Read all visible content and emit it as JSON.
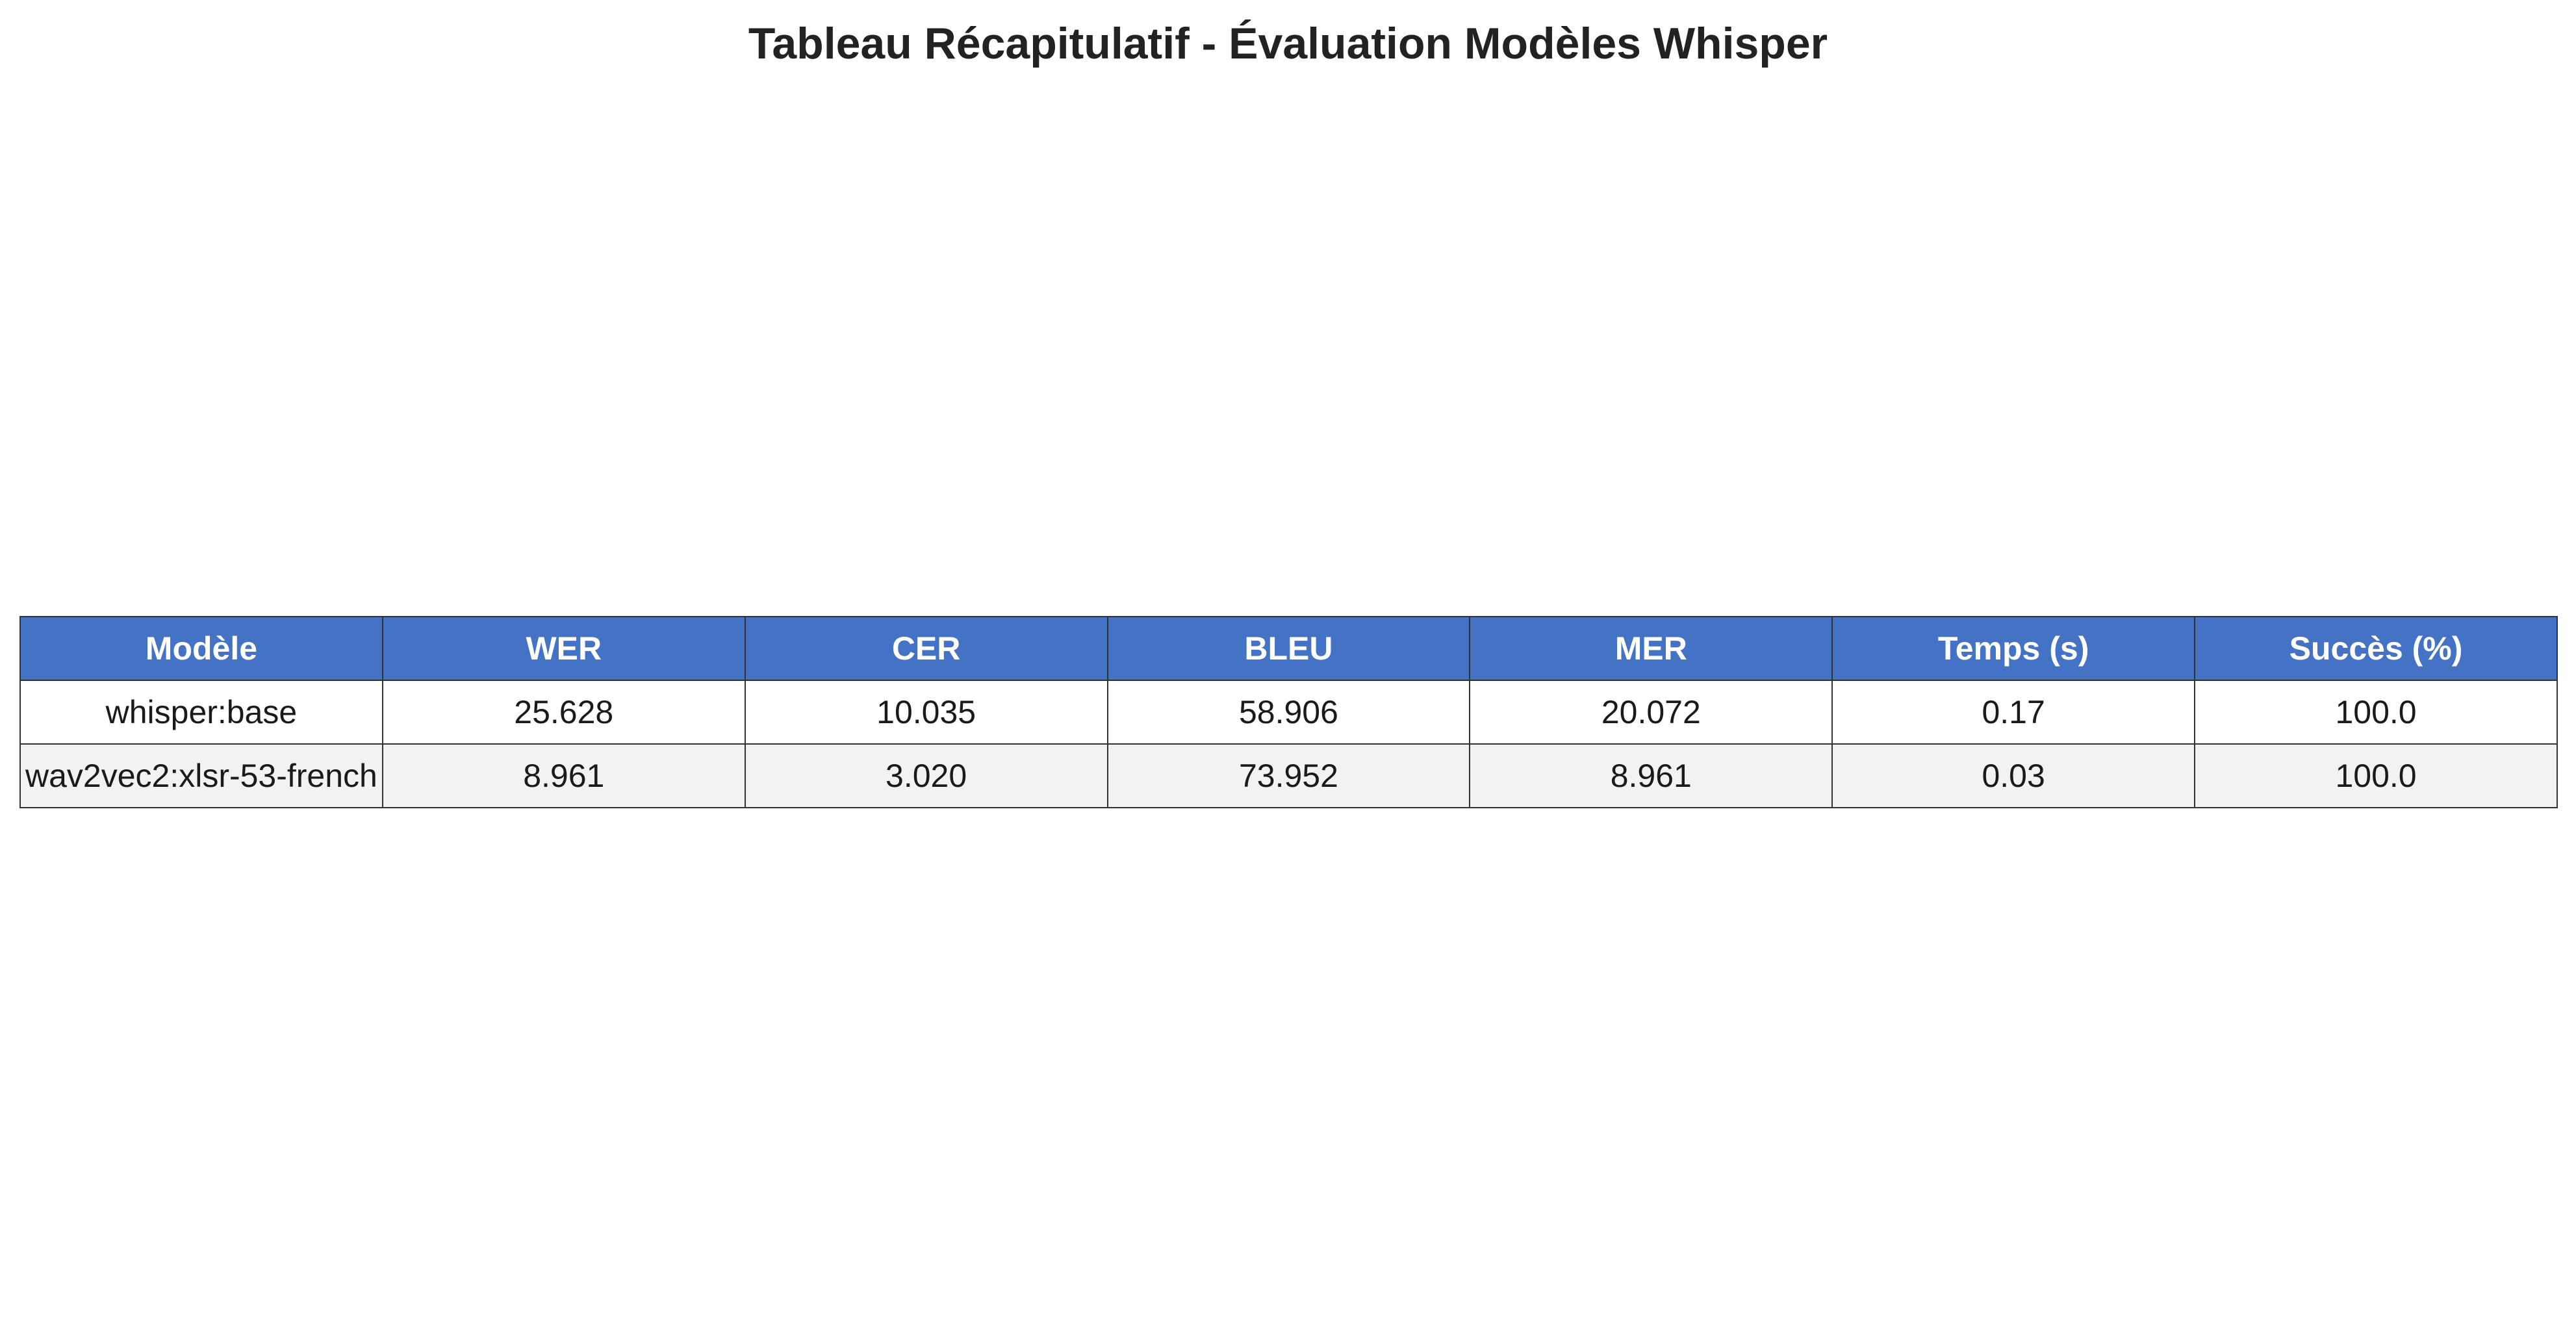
{
  "chart_data": {
    "type": "table",
    "title": "Tableau Récapitulatif - Évaluation Modèles Whisper",
    "columns": [
      "Modèle",
      "WER",
      "CER",
      "BLEU",
      "MER",
      "Temps (s)",
      "Succès (%)"
    ],
    "rows": [
      [
        "whisper:base",
        "25.628",
        "10.035",
        "58.906",
        "20.072",
        "0.17",
        "100.0"
      ],
      [
        "wav2vec2:xlsr-53-french",
        "8.961",
        "3.020",
        "73.952",
        "8.961",
        "0.03",
        "100.0"
      ]
    ],
    "colors": {
      "header_bg": "#4472c4",
      "header_text": "#ffffff",
      "row_alt_bg": "#f2f2f2",
      "border": "#333333"
    }
  }
}
